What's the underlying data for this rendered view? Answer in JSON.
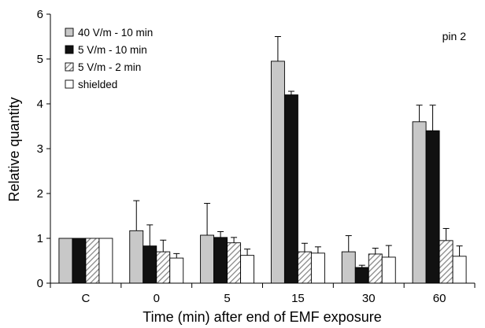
{
  "chart_data": {
    "type": "bar",
    "title": "",
    "panel_label": "pin 2",
    "xlabel": "Time (min) after end of EMF exposure",
    "ylabel": "Relative quantity",
    "ylim": [
      0,
      6
    ],
    "yticks": [
      "0",
      "1",
      "2",
      "3",
      "4",
      "5",
      "6"
    ],
    "categories": [
      "C",
      "0",
      "5",
      "15",
      "30",
      "60"
    ],
    "grid": false,
    "legend_position": "top-left",
    "series": [
      {
        "name": "40 V/m - 10 min",
        "fill": "#c8c8c8",
        "pattern": "solid",
        "values": [
          1.0,
          1.17,
          1.07,
          4.95,
          0.7,
          3.6
        ],
        "errors": [
          0.0,
          0.67,
          0.71,
          0.55,
          0.36,
          0.37
        ]
      },
      {
        "name": "5 V/m - 10 min",
        "fill": "#111111",
        "pattern": "solid",
        "values": [
          1.0,
          0.83,
          1.02,
          4.2,
          0.35,
          3.4
        ],
        "errors": [
          0.0,
          0.47,
          0.13,
          0.08,
          0.05,
          0.57
        ]
      },
      {
        "name": "5 V/m - 2 min",
        "fill": "#ffffff",
        "pattern": "hatch",
        "values": [
          1.0,
          0.7,
          0.9,
          0.7,
          0.65,
          0.95
        ],
        "errors": [
          0.0,
          0.26,
          0.12,
          0.19,
          0.13,
          0.27
        ]
      },
      {
        "name": "shielded",
        "fill": "#ffffff",
        "pattern": "solid",
        "values": [
          1.0,
          0.56,
          0.62,
          0.67,
          0.58,
          0.6
        ],
        "errors": [
          0.0,
          0.1,
          0.14,
          0.14,
          0.26,
          0.23
        ]
      }
    ]
  }
}
